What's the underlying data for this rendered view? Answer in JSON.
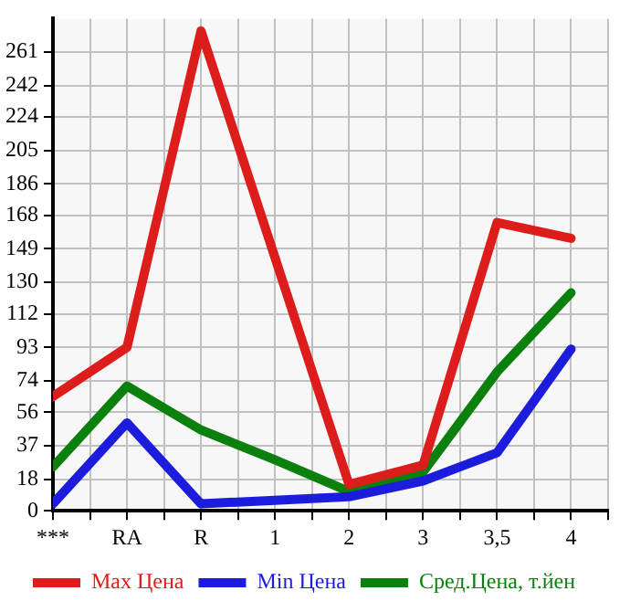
{
  "chart_data": {
    "type": "line",
    "categories": [
      "***",
      "RA",
      "R",
      "1",
      "2",
      "3",
      "3,5",
      "4"
    ],
    "series": [
      {
        "name": "Max Цена",
        "color": "#dd1c1c",
        "values": [
          65,
          93,
          273,
          144,
          15,
          26,
          164,
          155
        ]
      },
      {
        "name": "Min Цена",
        "color": "#1c1cdd",
        "values": [
          4,
          50,
          4,
          6,
          8,
          17,
          33,
          92
        ]
      },
      {
        "name": "Сред.Цена, т.йен",
        "color": "#0c800c",
        "values": [
          25,
          71,
          46,
          29,
          11,
          22,
          79,
          124
        ]
      }
    ],
    "ylim": [
      0,
      280
    ],
    "yticks": [
      0,
      18,
      37,
      56,
      74,
      93,
      112,
      130,
      149,
      168,
      186,
      205,
      224,
      242,
      261
    ],
    "grid": true,
    "legend": "bottom",
    "marker": "none",
    "line_style": "solid"
  }
}
